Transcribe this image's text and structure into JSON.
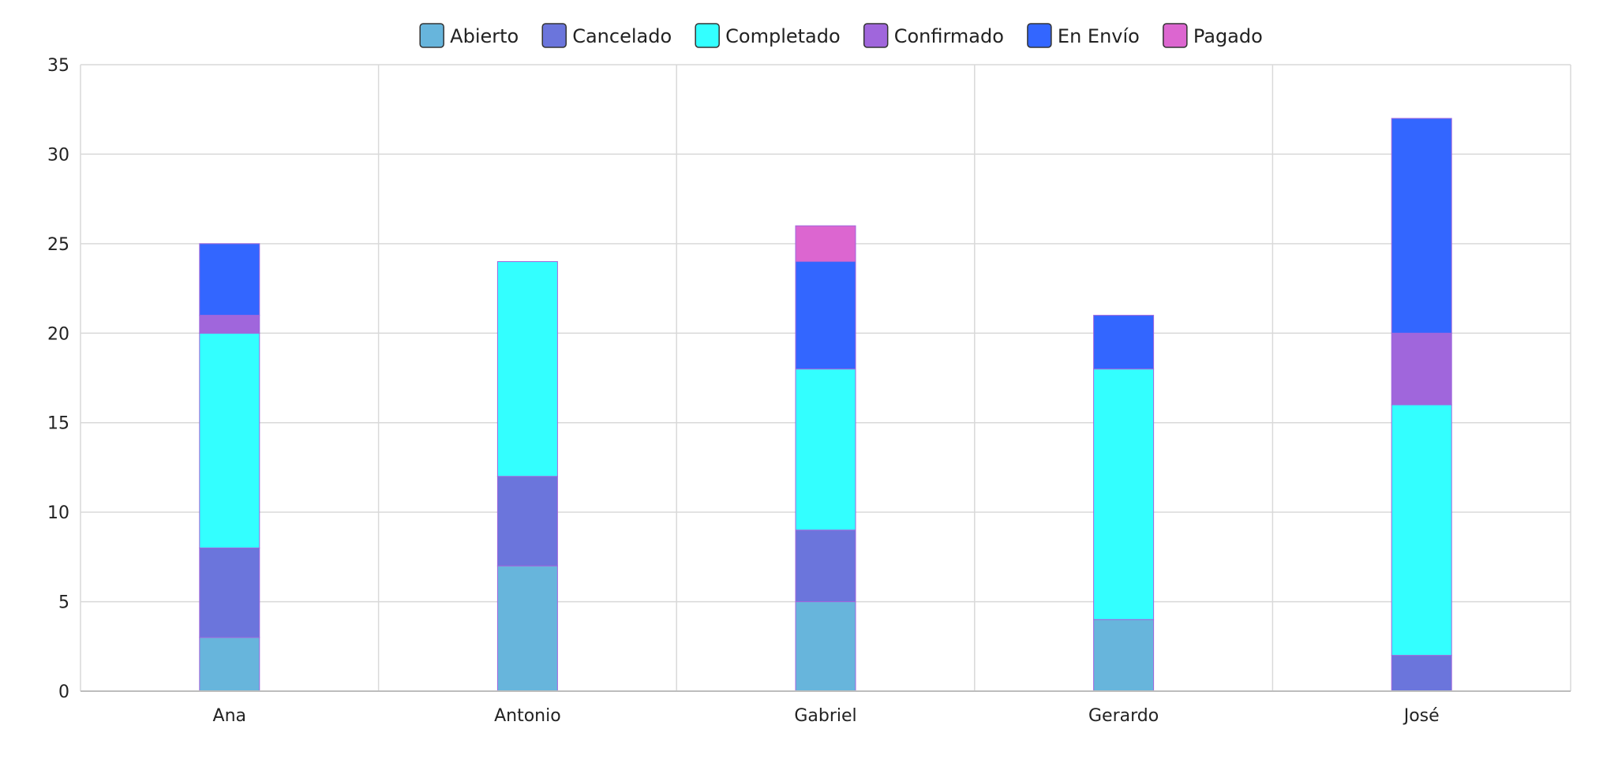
{
  "chart_data": {
    "type": "bar",
    "stacked": true,
    "categories": [
      "Ana",
      "Antonio",
      "Gabriel",
      "Gerardo",
      "José"
    ],
    "series": [
      {
        "name": "Abierto",
        "color": "#67b5dc",
        "values": [
          3,
          7,
          5,
          4,
          0
        ]
      },
      {
        "name": "Cancelado",
        "color": "#6b75dc",
        "values": [
          5,
          5,
          4,
          0,
          2
        ]
      },
      {
        "name": "Completado",
        "color": "#33ffff",
        "values": [
          12,
          12,
          9,
          14,
          14
        ]
      },
      {
        "name": "Confirmado",
        "color": "#a066dc",
        "values": [
          1,
          0,
          0,
          0,
          4
        ]
      },
      {
        "name": "En Envío",
        "color": "#3366ff",
        "values": [
          4,
          0,
          6,
          3,
          12
        ]
      },
      {
        "name": "Pagado",
        "color": "#dc66d0",
        "values": [
          0,
          0,
          2,
          0,
          0
        ]
      }
    ],
    "ylim": [
      0,
      35
    ],
    "yticks": [
      0,
      5,
      10,
      15,
      20,
      25,
      30,
      35
    ],
    "grid": true,
    "legend_position": "top-center",
    "bar_border_color": "#a066dc"
  }
}
